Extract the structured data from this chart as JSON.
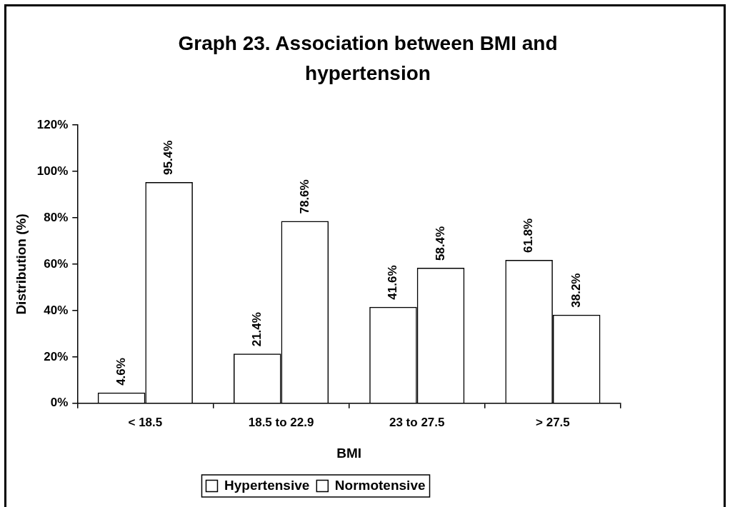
{
  "chart_data": {
    "type": "bar",
    "title": "Graph 23. Association between BMI and hypertension",
    "xlabel": "BMI",
    "ylabel": "Distribution (%)",
    "categories": [
      "< 18.5",
      "18.5 to 22.9",
      "23 to 27.5",
      "> 27.5"
    ],
    "series": [
      {
        "name": "Hypertensive",
        "color": "#000000",
        "values": [
          4.6,
          21.4,
          41.6,
          61.8
        ],
        "value_labels": [
          "4.6%",
          "21.4%",
          "41.6%",
          "61.8%"
        ]
      },
      {
        "name": "Normotensive",
        "color": "#000000",
        "values": [
          95.4,
          78.6,
          58.4,
          38.2
        ],
        "value_labels": [
          "95.4%",
          "78.6%",
          "58.4%",
          "38.2%"
        ]
      }
    ],
    "ylim": [
      0,
      120
    ],
    "yticks": [
      {
        "value": 0,
        "label": "0%"
      },
      {
        "value": 20,
        "label": "20%"
      },
      {
        "value": 40,
        "label": "40%"
      },
      {
        "value": 60,
        "label": "60%"
      },
      {
        "value": 80,
        "label": "80%"
      },
      {
        "value": 100,
        "label": "100%"
      },
      {
        "value": 120,
        "label": "120%"
      }
    ],
    "grid": false,
    "legend": "bottom"
  }
}
